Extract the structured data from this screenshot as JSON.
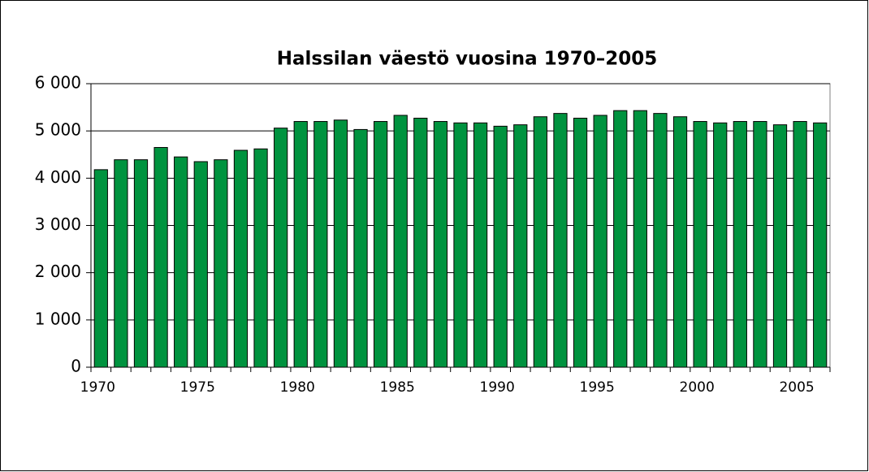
{
  "chart_data": {
    "type": "bar",
    "title": "Halssilan väestö vuosina 1970–2005",
    "categories": [
      "1970",
      null,
      null,
      null,
      null,
      "1975",
      null,
      null,
      null,
      null,
      "1980",
      null,
      null,
      null,
      null,
      "1985",
      null,
      null,
      null,
      null,
      "1990",
      null,
      null,
      null,
      null,
      "1995",
      null,
      null,
      null,
      null,
      "2000",
      null,
      null,
      null,
      null,
      "2005",
      null
    ],
    "values": [
      4180,
      4390,
      4390,
      4650,
      4450,
      4350,
      4390,
      4590,
      4620,
      5060,
      5200,
      5200,
      5230,
      5030,
      5200,
      5330,
      5270,
      5200,
      5170,
      5170,
      5100,
      5130,
      5300,
      5370,
      5270,
      5330,
      5430,
      5430,
      5370,
      5300,
      5200,
      5170,
      5200,
      5200,
      5130,
      5200,
      5170
    ],
    "color": "#00933f",
    "ylim": [
      0,
      6000
    ],
    "yticks": [
      0,
      {
        "value": 1000,
        "label": "1 000"
      },
      {
        "value": 2000,
        "label": "2 000"
      },
      {
        "value": 3000,
        "label": "3 000"
      },
      {
        "value": 4000,
        "label": "4 000"
      },
      {
        "value": 5000,
        "label": "5 000"
      },
      {
        "value": 6000,
        "label": "6 000"
      }
    ],
    "grid": true
  }
}
